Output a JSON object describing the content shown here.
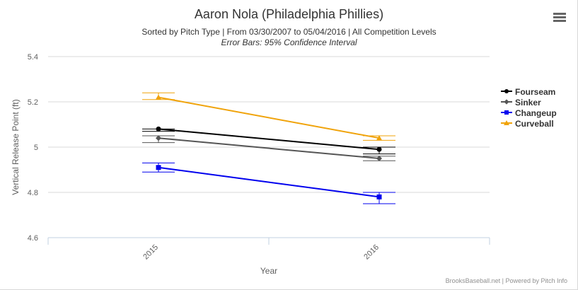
{
  "header": {
    "title": "Aaron Nola (Philadelphia Phillies)",
    "subtitle": "Sorted by Pitch Type | From 03/30/2007 to 05/04/2016 | All Competition Levels",
    "subtitle2": "Error Bars: 95% Confidence Interval"
  },
  "menu": {
    "icon": "hamburger-menu-icon"
  },
  "credits": "BrooksBaseball.net | Powered by Pitch Info",
  "chart_data": {
    "type": "line",
    "title": "Aaron Nola (Philadelphia Phillies)",
    "xlabel": "Year",
    "ylabel": "Vertical Release Point (ft)",
    "categories": [
      "2015",
      "2016"
    ],
    "ylim": [
      4.6,
      5.4
    ],
    "yticks": [
      "4.6",
      "4.8",
      "5",
      "5.2",
      "5.4"
    ],
    "grid": true,
    "legend_position": "right",
    "series": [
      {
        "name": "Fourseam",
        "color": "#000000",
        "marker": "circle",
        "values": [
          5.08,
          4.99
        ],
        "error_low": [
          5.07,
          4.97
        ],
        "error_high": [
          5.08,
          5.0
        ]
      },
      {
        "name": "Sinker",
        "color": "#555555",
        "marker": "diamond",
        "values": [
          5.04,
          4.95
        ],
        "error_low": [
          5.02,
          4.94
        ],
        "error_high": [
          5.05,
          4.96
        ]
      },
      {
        "name": "Changeup",
        "color": "#0000ee",
        "marker": "square",
        "values": [
          4.91,
          4.78
        ],
        "error_low": [
          4.89,
          4.75
        ],
        "error_high": [
          4.93,
          4.8
        ]
      },
      {
        "name": "Curveball",
        "color": "#f0a30a",
        "marker": "triangle",
        "values": [
          5.22,
          5.04
        ],
        "error_low": [
          5.21,
          5.03
        ],
        "error_high": [
          5.24,
          5.05
        ]
      }
    ]
  }
}
